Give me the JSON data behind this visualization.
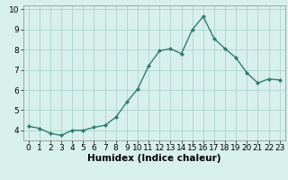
{
  "x": [
    0,
    1,
    2,
    3,
    4,
    5,
    6,
    7,
    8,
    9,
    10,
    11,
    12,
    13,
    14,
    15,
    16,
    17,
    18,
    19,
    20,
    21,
    22,
    23
  ],
  "y": [
    4.2,
    4.1,
    3.85,
    3.75,
    4.0,
    4.0,
    4.15,
    4.25,
    4.65,
    5.4,
    6.05,
    7.2,
    7.95,
    8.05,
    7.8,
    9.0,
    9.65,
    8.55,
    8.05,
    7.6,
    6.85,
    6.35,
    6.55,
    6.5
  ],
  "line_color": "#2e7d6e",
  "marker": "D",
  "marker_size": 2,
  "line_width": 1.0,
  "xlabel": "Humidex (Indice chaleur)",
  "xlabel_fontsize": 7.5,
  "xlim": [
    -0.5,
    23.5
  ],
  "ylim": [
    3.5,
    10.2
  ],
  "yticks": [
    4,
    5,
    6,
    7,
    8,
    9,
    10
  ],
  "xticks": [
    0,
    1,
    2,
    3,
    4,
    5,
    6,
    7,
    8,
    9,
    10,
    11,
    12,
    13,
    14,
    15,
    16,
    17,
    18,
    19,
    20,
    21,
    22,
    23
  ],
  "grid_color": "#b0d8d0",
  "background_color": "#d8f0ec",
  "tick_fontsize": 6.5,
  "spine_color": "#888888"
}
